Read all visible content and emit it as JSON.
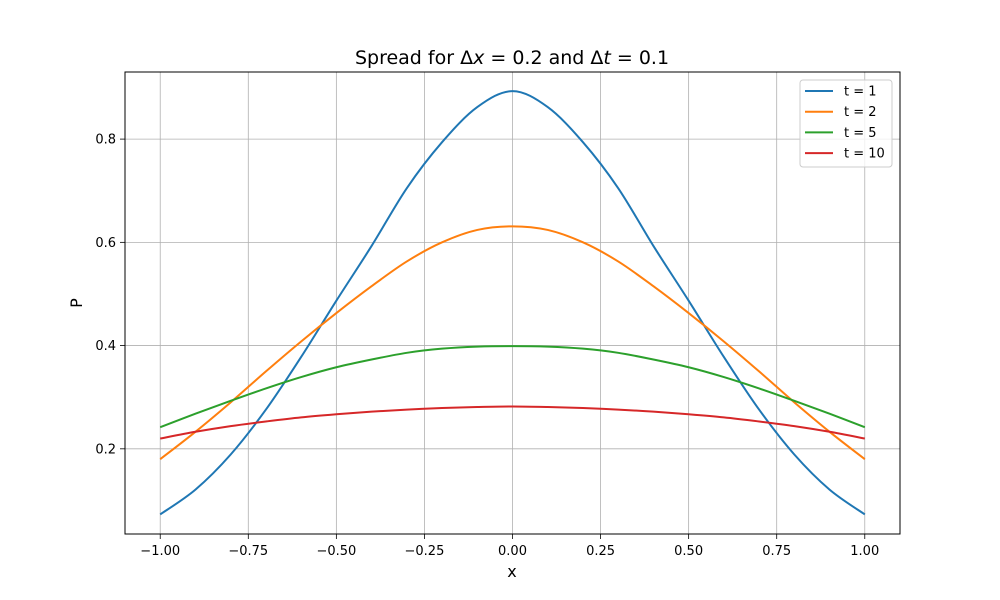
{
  "chart_data": {
    "type": "line",
    "title_parts": [
      "Spread for Δ",
      "x",
      " = 0.2 and Δ",
      "t",
      " = 0.1"
    ],
    "xlabel": "x",
    "ylabel": "P",
    "xlim": [
      -1.1,
      1.1
    ],
    "ylim": [
      0.035,
      0.93
    ],
    "xticks": [
      -1.0,
      -0.75,
      -0.5,
      -0.25,
      0.0,
      0.25,
      0.5,
      0.75,
      1.0
    ],
    "xtick_labels": [
      "−1.00",
      "−0.75",
      "−0.50",
      "−0.25",
      "0.00",
      "0.25",
      "0.50",
      "0.75",
      "1.00"
    ],
    "yticks": [
      0.2,
      0.4,
      0.6,
      0.8
    ],
    "ytick_labels": [
      "0.2",
      "0.4",
      "0.6",
      "0.8"
    ],
    "grid": true,
    "legend_position": "top-right",
    "x": [
      -1.0,
      -0.9,
      -0.8,
      -0.7,
      -0.6,
      -0.5,
      -0.4,
      -0.3,
      -0.2,
      -0.1,
      0.0,
      0.1,
      0.2,
      0.3,
      0.4,
      0.5,
      0.6,
      0.7,
      0.8,
      0.9,
      1.0
    ],
    "series": [
      {
        "name": "t = 1",
        "color": "#1f77b4",
        "values": [
          0.073,
          0.121,
          0.189,
          0.276,
          0.378,
          0.487,
          0.593,
          0.705,
          0.794,
          0.862,
          0.893,
          0.862,
          0.794,
          0.705,
          0.593,
          0.487,
          0.378,
          0.276,
          0.189,
          0.121,
          0.073
        ]
      },
      {
        "name": "t = 2",
        "color": "#ff7f0e",
        "values": [
          0.18,
          0.233,
          0.29,
          0.35,
          0.408,
          0.463,
          0.515,
          0.563,
          0.6,
          0.624,
          0.631,
          0.624,
          0.6,
          0.563,
          0.515,
          0.463,
          0.408,
          0.35,
          0.29,
          0.233,
          0.18
        ]
      },
      {
        "name": "t = 5",
        "color": "#2ca02c",
        "values": [
          0.242,
          0.268,
          0.293,
          0.317,
          0.339,
          0.358,
          0.373,
          0.386,
          0.394,
          0.398,
          0.399,
          0.398,
          0.394,
          0.386,
          0.373,
          0.358,
          0.339,
          0.317,
          0.293,
          0.268,
          0.242
        ]
      },
      {
        "name": "t = 10",
        "color": "#d62728",
        "values": [
          0.22,
          0.233,
          0.244,
          0.253,
          0.261,
          0.267,
          0.272,
          0.276,
          0.279,
          0.281,
          0.282,
          0.281,
          0.279,
          0.276,
          0.272,
          0.267,
          0.261,
          0.253,
          0.244,
          0.233,
          0.22
        ]
      }
    ]
  }
}
